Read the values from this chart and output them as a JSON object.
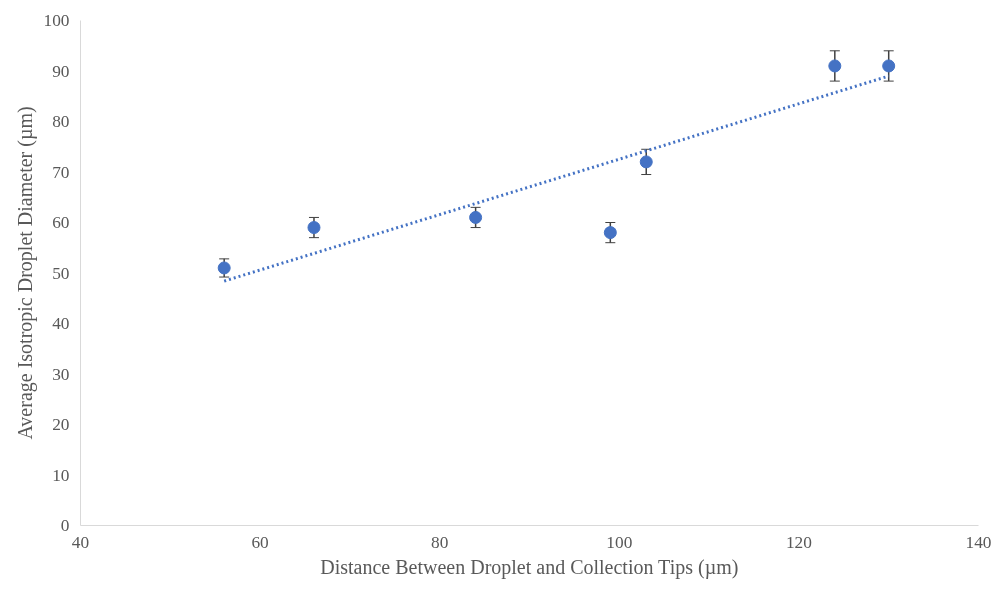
{
  "chart_data": {
    "type": "scatter",
    "xlabel": "Distance Between Droplet and Collection Tips (µm)",
    "ylabel": "Average Isotropic Droplet Diameter (µm)",
    "xlim": [
      40,
      140
    ],
    "xticks": [
      40,
      60,
      80,
      100,
      120,
      140
    ],
    "ylim": [
      0,
      100
    ],
    "yticks": [
      0,
      10,
      20,
      30,
      40,
      50,
      60,
      70,
      80,
      90,
      100
    ],
    "grid": false,
    "series": [
      {
        "marker": "circle",
        "color": "#4472c4",
        "x": [
          56,
          66,
          84,
          99,
          103,
          124,
          130
        ],
        "values": [
          51,
          59,
          61,
          58,
          72,
          91,
          91
        ],
        "errors": [
          1.8,
          2,
          2,
          2,
          2.5,
          3,
          3
        ]
      },
      {
        "type": "line",
        "line_style": "dotted",
        "color": "#4472c4",
        "x": [
          56,
          130
        ],
        "values": [
          48.4,
          89
        ]
      }
    ]
  }
}
